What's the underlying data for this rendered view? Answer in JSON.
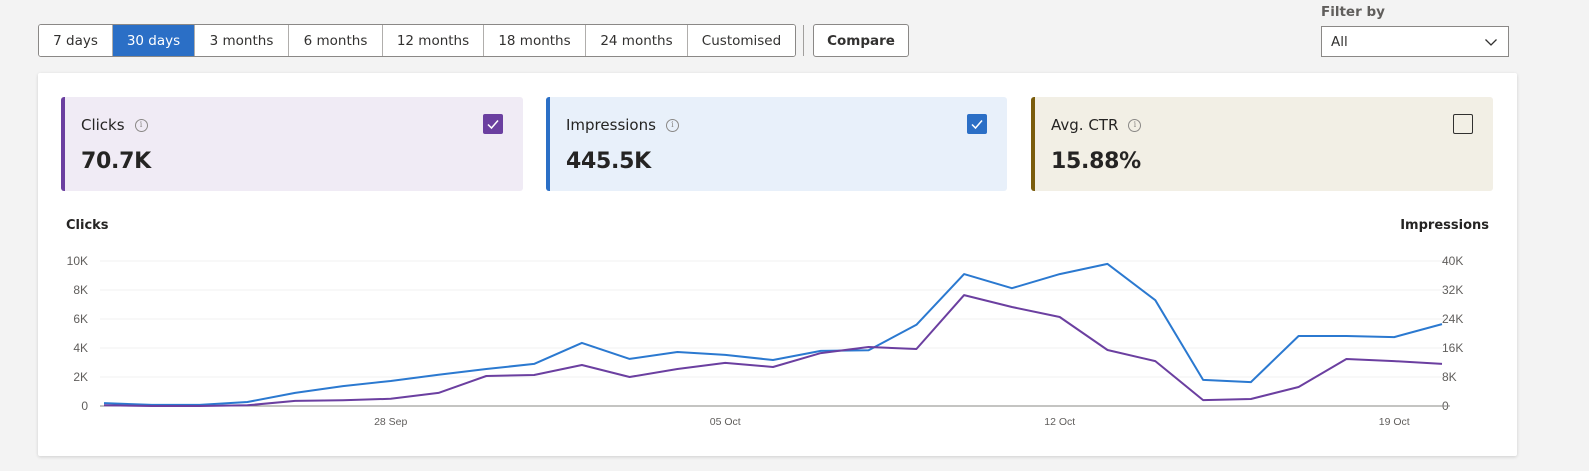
{
  "toolbar": {
    "periods": [
      {
        "label": "7 days",
        "active": false
      },
      {
        "label": "30 days",
        "active": true
      },
      {
        "label": "3 months",
        "active": false
      },
      {
        "label": "6 months",
        "active": false
      },
      {
        "label": "12 months",
        "active": false
      },
      {
        "label": "18 months",
        "active": false
      },
      {
        "label": "24 months",
        "active": false
      },
      {
        "label": "Customised",
        "active": false
      }
    ],
    "compare_label": "Compare"
  },
  "filter": {
    "label": "Filter by",
    "selected": "All",
    "icon": "chevron-down-icon"
  },
  "cards": [
    {
      "title": "Clicks",
      "value": "70.7K",
      "checked": true,
      "accent": "#6b3fa0",
      "bg": "#f0ebf5",
      "info_icon": "info-icon"
    },
    {
      "title": "Impressions",
      "value": "445.5K",
      "checked": true,
      "accent": "#2b6fc6",
      "bg": "#e8f0fa",
      "info_icon": "info-icon"
    },
    {
      "title": "Avg. CTR",
      "value": "15.88%",
      "checked": false,
      "accent": "#7a5c0c",
      "bg": "#f2efe5",
      "info_icon": "info-icon"
    }
  ],
  "chart_data": {
    "type": "line",
    "title": "",
    "xlabel": "",
    "ylabel": "Clicks",
    "ylabel_right": "Impressions",
    "ylim": [
      0,
      10000
    ],
    "ylim_right": [
      0,
      40000
    ],
    "yticks_left": [
      "0",
      "2K",
      "4K",
      "6K",
      "8K",
      "10K"
    ],
    "yticks_right": [
      "0",
      "8K",
      "16K",
      "24K",
      "32K",
      "40K"
    ],
    "xtick_labels": [
      {
        "label": "28 Sep",
        "index": 6
      },
      {
        "label": "05 Oct",
        "index": 13
      },
      {
        "label": "12 Oct",
        "index": 20
      },
      {
        "label": "19 Oct",
        "index": 27
      }
    ],
    "grid": true,
    "legend": "none",
    "x": [
      "22 Sep",
      "23 Sep",
      "24 Sep",
      "25 Sep",
      "26 Sep",
      "27 Sep",
      "28 Sep",
      "29 Sep",
      "30 Sep",
      "01 Oct",
      "02 Oct",
      "03 Oct",
      "04 Oct",
      "05 Oct",
      "06 Oct",
      "07 Oct",
      "08 Oct",
      "09 Oct",
      "10 Oct",
      "11 Oct",
      "12 Oct",
      "13 Oct",
      "14 Oct",
      "15 Oct",
      "16 Oct",
      "17 Oct",
      "18 Oct",
      "19 Oct",
      "20 Oct"
    ],
    "series": [
      {
        "name": "Impressions",
        "axis": "right",
        "color": "#2b79d0",
        "values": [
          800,
          300,
          300,
          1100,
          3600,
          5500,
          6900,
          8600,
          10200,
          11600,
          17400,
          13000,
          14900,
          14100,
          12700,
          15200,
          15400,
          22400,
          36400,
          32500,
          36400,
          39200,
          29200,
          7200,
          6600,
          19300,
          19300,
          19000,
          22600
        ]
      },
      {
        "name": "Clicks",
        "axis": "left",
        "color": "#6b3fa0",
        "values": [
          50,
          0,
          0,
          50,
          350,
          400,
          500,
          900,
          2070,
          2140,
          2830,
          2000,
          2550,
          2970,
          2690,
          3650,
          4070,
          3930,
          7650,
          6830,
          6140,
          3860,
          3100,
          410,
          480,
          1310,
          3240,
          3100,
          2900
        ]
      }
    ]
  }
}
